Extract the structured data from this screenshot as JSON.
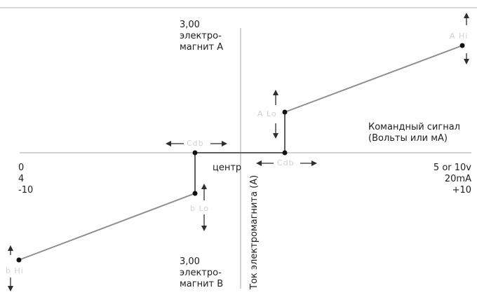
{
  "diagram": {
    "y_top_label": [
      "3,00",
      "электро-",
      "магнит А"
    ],
    "y_bottom_label": [
      "3,00",
      "электро-",
      "магнит В"
    ],
    "x_axis_label": [
      "Командный сигнал",
      "(Вольты или мА)"
    ],
    "center_label": "центр",
    "vertical_axis_label": "Ток электромагнита (А)",
    "x_min_labels": [
      "0",
      "4",
      "-10"
    ],
    "x_max_labels": [
      "5 or 10v",
      "20mA",
      "+10"
    ],
    "adjust_labels": {
      "a_hi": "A Hi",
      "a_lo": "A Lo",
      "b_hi": "b Hi",
      "b_lo": "b Lo",
      "cdb": "Cdb"
    },
    "colors": {
      "axis": "#b8b8b8",
      "curve": "#8f8f8f",
      "step": "#5f5f5f",
      "point": "#111111",
      "arrow": "#2e2e2e",
      "ghost_text": "#d2d2d2",
      "top_border": "#d8d8d8"
    }
  }
}
